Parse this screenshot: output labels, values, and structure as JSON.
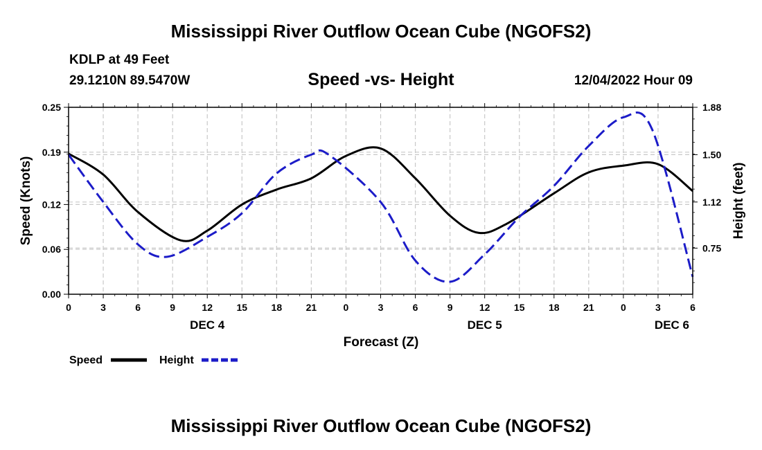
{
  "header": {
    "title": "Mississippi River Outflow Ocean Cube (NGOFS2)",
    "station": "KDLP at 49 Feet",
    "coords": "29.1210N  89.5470W",
    "timestamp": "12/04/2022 Hour 09"
  },
  "footer": {
    "repeat_title": "Mississippi River Outflow Ocean Cube (NGOFS2)"
  },
  "chart_data": {
    "type": "line",
    "title": "Speed -vs- Height",
    "xlabel": "Forecast (Z)",
    "ylabel": "Speed (Knots)",
    "y2label": "Height (feet)",
    "xlim": [
      0,
      54
    ],
    "ylim": [
      0,
      0.25
    ],
    "y2lim": [
      0.38,
      1.88
    ],
    "grid": true,
    "x_tick_labels": [
      "0",
      "3",
      "6",
      "9",
      "12",
      "15",
      "18",
      "21",
      "0",
      "3",
      "6",
      "9",
      "12",
      "15",
      "18",
      "21",
      "0",
      "3",
      "6"
    ],
    "day_labels": [
      {
        "label": "DEC 4",
        "x": 12
      },
      {
        "label": "DEC 5",
        "x": 36
      },
      {
        "label": "DEC 6",
        "x": 52.2
      }
    ],
    "y_ticks": [
      0.0,
      0.06,
      0.12,
      0.19,
      0.25
    ],
    "y_tick_labels": [
      "0.00",
      "0.06",
      "0.12",
      "0.19",
      "0.25"
    ],
    "y2_ticks": [
      0.75,
      1.12,
      1.5,
      1.88
    ],
    "y2_tick_labels": [
      "0.75",
      "1.12",
      "1.50",
      "1.88"
    ],
    "series": [
      {
        "name": "Speed",
        "axis": "left",
        "color": "#000000",
        "dashed": false,
        "x": [
          0,
          3,
          6,
          9.7,
          12,
          15,
          18,
          21,
          24,
          27,
          30,
          33,
          35.5,
          38,
          42,
          45,
          48,
          51,
          54
        ],
        "values": [
          0.188,
          0.16,
          0.11,
          0.072,
          0.085,
          0.12,
          0.14,
          0.155,
          0.185,
          0.195,
          0.155,
          0.105,
          0.082,
          0.095,
          0.135,
          0.163,
          0.172,
          0.174,
          0.138
        ]
      },
      {
        "name": "Height",
        "axis": "right",
        "color": "#1c1cc8",
        "dashed": true,
        "x": [
          0,
          3,
          6,
          8.5,
          12,
          15,
          18,
          21,
          22.5,
          27,
          30,
          33,
          36,
          39,
          42,
          45,
          48,
          50.5,
          54
        ],
        "values": [
          1.5,
          1.12,
          0.78,
          0.68,
          0.84,
          1.03,
          1.35,
          1.5,
          1.5,
          1.12,
          0.65,
          0.48,
          0.7,
          1.0,
          1.25,
          1.57,
          1.8,
          1.7,
          0.52
        ]
      }
    ]
  }
}
